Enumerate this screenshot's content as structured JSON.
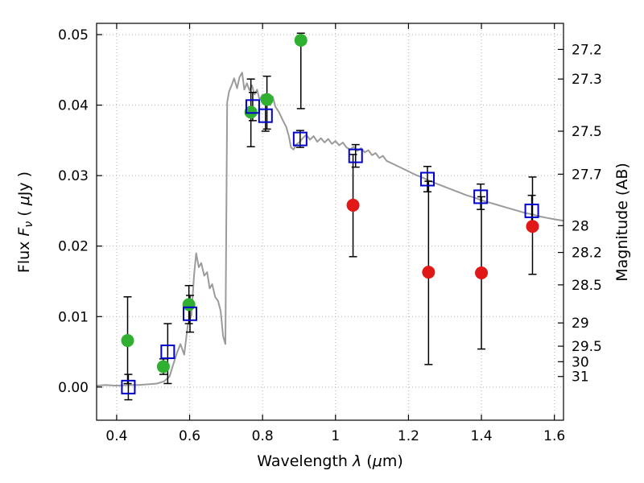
{
  "figure": {
    "background": "#ffffff",
    "frame_color": "#000000",
    "grid_color": "#b3b3b3",
    "errorbar_color": "#000000"
  },
  "chart_data": {
    "type": "line+scatter",
    "title": "",
    "xlabel": "Wavelength λ (μm)",
    "ylabel": "Flux Fν ( μJy )",
    "right_label": "Magnitude (AB)",
    "xlabel_parts": {
      "a": "Wavelength ",
      "b": "λ",
      "c": " (",
      "d": "μ",
      "e": "m)"
    },
    "ylabel_parts": {
      "a": "Flux ",
      "b": "F",
      "c": "ν",
      "d": " ( ",
      "e": "μ",
      "f": "Jy )"
    },
    "xlim": [
      0.345,
      1.625
    ],
    "ylim": [
      -0.0047,
      0.0516
    ],
    "grid": true,
    "x_ticks": [
      0.4,
      0.6,
      0.8,
      1.0,
      1.2,
      1.4,
      1.6
    ],
    "x_tick_labels": [
      "0.4",
      "0.6",
      "0.8",
      "1",
      "1.2",
      "1.4",
      "1.6"
    ],
    "y_ticks": [
      0.0,
      0.01,
      0.02,
      0.03,
      0.04,
      0.05
    ],
    "y_tick_labels": [
      "0.00",
      "0.01",
      "0.02",
      "0.03",
      "0.04",
      "0.05"
    ],
    "right_ticks": [
      {
        "label": "27.2",
        "flux": 0.0479
      },
      {
        "label": "27.3",
        "flux": 0.0437
      },
      {
        "label": "27.5",
        "flux": 0.0363
      },
      {
        "label": "27.7",
        "flux": 0.0302
      },
      {
        "label": "28",
        "flux": 0.0229
      },
      {
        "label": "28.2",
        "flux": 0.0191
      },
      {
        "label": "28.5",
        "flux": 0.0145
      },
      {
        "label": "29",
        "flux": 0.0091
      },
      {
        "label": "29.5",
        "flux": 0.0058
      },
      {
        "label": "30",
        "flux": 0.0036
      },
      {
        "label": "31",
        "flux": 0.0015
      }
    ],
    "series": [
      {
        "name": "model-spectrum",
        "type": "line",
        "color": "#9b9b9b",
        "width": 2,
        "x": [
          0.345,
          0.37,
          0.4,
          0.43,
          0.46,
          0.49,
          0.51,
          0.53,
          0.545,
          0.555,
          0.565,
          0.575,
          0.585,
          0.595,
          0.605,
          0.612,
          0.618,
          0.625,
          0.632,
          0.64,
          0.648,
          0.655,
          0.662,
          0.67,
          0.678,
          0.685,
          0.692,
          0.698,
          0.703,
          0.708,
          0.715,
          0.722,
          0.73,
          0.737,
          0.744,
          0.75,
          0.757,
          0.764,
          0.771,
          0.778,
          0.785,
          0.792,
          0.8,
          0.807,
          0.814,
          0.821,
          0.828,
          0.835,
          0.845,
          0.855,
          0.865,
          0.872,
          0.878,
          0.885,
          0.892,
          0.9,
          0.91,
          0.92,
          0.93,
          0.94,
          0.95,
          0.96,
          0.97,
          0.98,
          0.99,
          1.0,
          1.01,
          1.02,
          1.03,
          1.04,
          1.05,
          1.06,
          1.07,
          1.08,
          1.09,
          1.1,
          1.11,
          1.12,
          1.13,
          1.14,
          1.16,
          1.18,
          1.2,
          1.22,
          1.24,
          1.26,
          1.28,
          1.3,
          1.32,
          1.34,
          1.36,
          1.38,
          1.4,
          1.42,
          1.44,
          1.46,
          1.48,
          1.5,
          1.52,
          1.54,
          1.56,
          1.58,
          1.6,
          1.625
        ],
        "y": [
          0.0002,
          0.0003,
          0.0002,
          0.0003,
          0.0003,
          0.0004,
          0.0005,
          0.0008,
          0.0015,
          0.0032,
          0.0048,
          0.0061,
          0.0046,
          0.0088,
          0.0102,
          0.0158,
          0.019,
          0.017,
          0.0176,
          0.0158,
          0.0163,
          0.014,
          0.0146,
          0.0128,
          0.0122,
          0.0108,
          0.0072,
          0.0061,
          0.0404,
          0.0419,
          0.0428,
          0.0438,
          0.0424,
          0.044,
          0.0446,
          0.0422,
          0.0431,
          0.0421,
          0.0428,
          0.0415,
          0.0422,
          0.0407,
          0.0415,
          0.0403,
          0.0411,
          0.04,
          0.0412,
          0.0398,
          0.039,
          0.0379,
          0.0369,
          0.0356,
          0.034,
          0.0337,
          0.0344,
          0.0347,
          0.0353,
          0.0358,
          0.0351,
          0.0356,
          0.0348,
          0.0353,
          0.0347,
          0.0352,
          0.0345,
          0.0349,
          0.0343,
          0.0347,
          0.034,
          0.0337,
          0.0341,
          0.0335,
          0.0339,
          0.0333,
          0.0336,
          0.0329,
          0.0332,
          0.0325,
          0.0328,
          0.0321,
          0.0316,
          0.0311,
          0.0306,
          0.0301,
          0.0297,
          0.0292,
          0.0288,
          0.0284,
          0.028,
          0.0276,
          0.0272,
          0.0269,
          0.0265,
          0.0262,
          0.0259,
          0.0256,
          0.0253,
          0.025,
          0.0247,
          0.0245,
          0.0242,
          0.024,
          0.0238,
          0.0236
        ]
      },
      {
        "name": "photometry-green-circles",
        "type": "scatter",
        "marker": "filled-circle",
        "color": "#30b030",
        "points": [
          {
            "x": 0.43,
            "y": 0.0066,
            "lo": 0.0005,
            "hi": 0.0128
          },
          {
            "x": 0.528,
            "y": 0.0029,
            "lo": 0.0018,
            "hi": 0.004
          },
          {
            "x": 0.598,
            "y": 0.0117,
            "lo": 0.009,
            "hi": 0.0144
          },
          {
            "x": 0.768,
            "y": 0.039,
            "lo": 0.0341,
            "hi": 0.0437
          },
          {
            "x": 0.812,
            "y": 0.0408,
            "lo": 0.0366,
            "hi": 0.0441
          },
          {
            "x": 0.905,
            "y": 0.0492,
            "lo": 0.0395,
            "hi": 0.0502
          }
        ]
      },
      {
        "name": "photometry-red-circles",
        "type": "scatter",
        "marker": "filled-circle",
        "color": "#e01818",
        "points": [
          {
            "x": 1.048,
            "y": 0.0258,
            "lo": 0.0185,
            "hi": 0.033
          },
          {
            "x": 1.255,
            "y": 0.0163,
            "lo": 0.0032,
            "hi": 0.0292
          },
          {
            "x": 1.4,
            "y": 0.0162,
            "lo": 0.0054,
            "hi": 0.027
          },
          {
            "x": 1.54,
            "y": 0.0228,
            "lo": 0.016,
            "hi": 0.0298
          }
        ]
      },
      {
        "name": "model-photometry-blue-squares",
        "type": "scatter",
        "marker": "open-square",
        "color": "#0000cd",
        "points": [
          {
            "x": 0.432,
            "y": 0.0,
            "lo": -0.0018,
            "hi": 0.0018
          },
          {
            "x": 0.54,
            "y": 0.005,
            "lo": 0.0005,
            "hi": 0.009
          },
          {
            "x": 0.601,
            "y": 0.0104,
            "lo": 0.0078,
            "hi": 0.013
          },
          {
            "x": 0.773,
            "y": 0.0398,
            "lo": 0.0378,
            "hi": 0.0418
          },
          {
            "x": 0.808,
            "y": 0.0385,
            "lo": 0.0363,
            "hi": 0.0407
          },
          {
            "x": 0.903,
            "y": 0.0352,
            "lo": 0.034,
            "hi": 0.0364
          },
          {
            "x": 1.055,
            "y": 0.0328,
            "lo": 0.0312,
            "hi": 0.0344
          },
          {
            "x": 1.252,
            "y": 0.0295,
            "lo": 0.0277,
            "hi": 0.0313
          },
          {
            "x": 1.398,
            "y": 0.027,
            "lo": 0.0252,
            "hi": 0.0288
          },
          {
            "x": 1.538,
            "y": 0.025,
            "lo": 0.0228,
            "hi": 0.0272
          }
        ]
      }
    ]
  }
}
